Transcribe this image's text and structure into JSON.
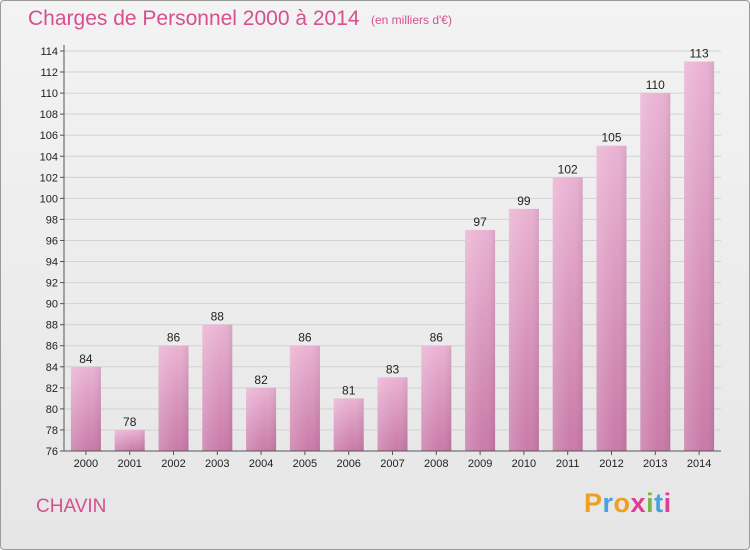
{
  "header": {
    "title": "Charges de Personnel 2000 à 2014",
    "subtitle": "(en milliers d'€)"
  },
  "footer": {
    "commune": "CHAVIN",
    "brand": "Proxiti",
    "brand_colors": [
      "#f0a020",
      "#4aa3df",
      "#f0a020",
      "#e03c96",
      "#7ab648",
      "#4aa3df",
      "#e03c96"
    ]
  },
  "chart_data": {
    "type": "bar",
    "title": "Charges de Personnel 2000 à 2014",
    "subtitle": "(en milliers d'€)",
    "categories": [
      "2000",
      "2001",
      "2002",
      "2003",
      "2004",
      "2005",
      "2006",
      "2007",
      "2008",
      "2009",
      "2010",
      "2011",
      "2012",
      "2013",
      "2014"
    ],
    "values": [
      84,
      78,
      86,
      88,
      82,
      86,
      81,
      83,
      86,
      97,
      99,
      102,
      105,
      110,
      113
    ],
    "ylim": [
      76,
      114
    ],
    "yticks": [
      76,
      78,
      80,
      82,
      84,
      86,
      88,
      90,
      92,
      94,
      96,
      98,
      100,
      102,
      104,
      106,
      108,
      110,
      112,
      114
    ],
    "xlabel": "",
    "ylabel": "",
    "grid": true,
    "bar_color_light": "#eab3d3",
    "bar_color_dark": "#c97aa8"
  }
}
